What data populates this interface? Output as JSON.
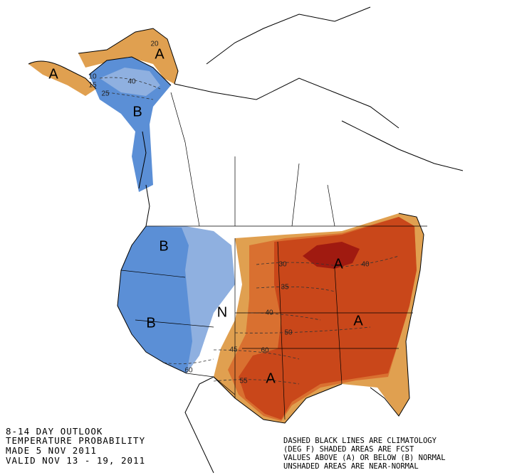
{
  "title_lines": [
    "8-14 DAY OUTLOOK",
    "TEMPERATURE PROBABILITY",
    "MADE  5 NOV 2011",
    "VALID  NOV 13 - 19, 2011"
  ],
  "legend_lines": [
    "DASHED BLACK LINES ARE CLIMATOLOGY",
    "(DEG F) SHADED AREAS ARE FCST",
    "VALUES ABOVE (A) OR BELOW (B) NORMAL",
    "UNSHADED AREAS ARE NEAR-NORMAL"
  ],
  "region_labels": [
    "A",
    "A",
    "B",
    "B",
    "B",
    "N",
    "A",
    "A",
    "A"
  ],
  "contour_labels": [
    "20",
    "10",
    "15",
    "25",
    "40",
    "30",
    "40",
    "35",
    "40",
    "50",
    "45",
    "60",
    "60",
    "55"
  ]
}
